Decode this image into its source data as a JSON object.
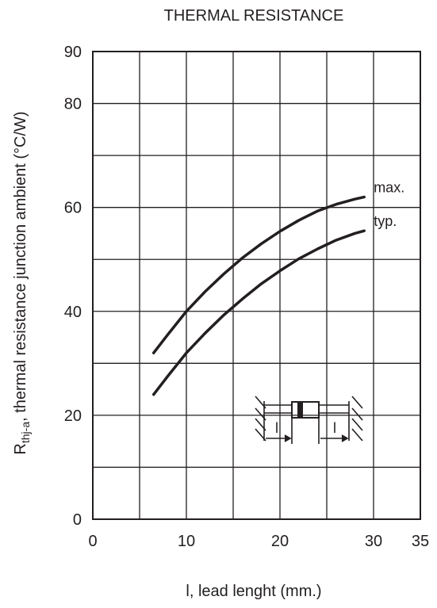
{
  "chart_data": {
    "type": "line",
    "title": "THERMAL RESISTANCE",
    "xlabel": "l, lead lenght (mm.)",
    "ylabel": {
      "symbol": "R",
      "subscript": "thj-a",
      "text": ", thermal resistance junction ambient (°C/W)"
    },
    "xlim": [
      0,
      35
    ],
    "ylim": [
      0,
      90
    ],
    "x_ticks": [
      0,
      10,
      20,
      30,
      35
    ],
    "y_ticks": [
      0,
      20,
      40,
      60,
      80,
      90
    ],
    "x_grid": [
      0,
      5,
      10,
      15,
      20,
      25,
      30,
      35
    ],
    "y_grid": [
      0,
      10,
      20,
      30,
      40,
      50,
      60,
      70,
      80,
      90
    ],
    "grid": true,
    "series": [
      {
        "name": "max.",
        "x": [
          6.5,
          8,
          10,
          12,
          14,
          16,
          18,
          20,
          22,
          24,
          26,
          28,
          29
        ],
        "y": [
          32.0,
          35.5,
          40.0,
          43.8,
          47.2,
          50.3,
          53.0,
          55.4,
          57.5,
          59.3,
          60.6,
          61.6,
          62.0
        ]
      },
      {
        "name": "typ.",
        "x": [
          6.5,
          8,
          10,
          12,
          14,
          16,
          18,
          20,
          22,
          24,
          26,
          28,
          29
        ],
        "y": [
          24.0,
          27.5,
          32.0,
          35.8,
          39.3,
          42.4,
          45.3,
          47.8,
          50.1,
          52.0,
          53.7,
          55.0,
          55.5
        ]
      }
    ],
    "inset": {
      "description_label": "l"
    },
    "colors": {
      "line": "#231f20",
      "grid": "#231f20"
    }
  }
}
